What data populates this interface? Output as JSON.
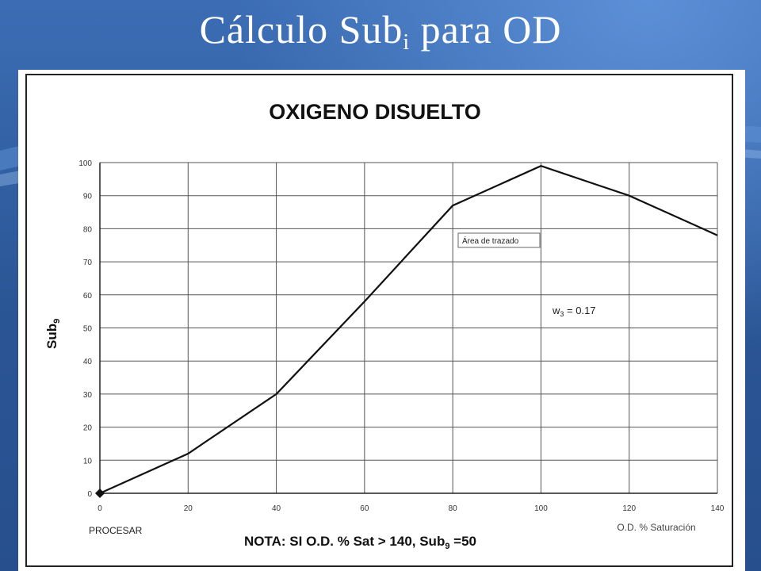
{
  "slide": {
    "title_main": "Cálculo Sub",
    "title_sub": "i",
    "title_end": " para OD"
  },
  "chart_data": {
    "type": "line",
    "title": "OXIGENO DISUELTO",
    "xlabel": "O.D. % Saturación",
    "ylabel_main": "Sub",
    "ylabel_sub": "9",
    "x": [
      0,
      20,
      40,
      60,
      80,
      100,
      120,
      140
    ],
    "series": [
      {
        "values": [
          0,
          12,
          30,
          58,
          87,
          99,
          90,
          78
        ]
      }
    ],
    "xlim": [
      0,
      140
    ],
    "ylim": [
      0,
      100
    ],
    "xticks": [
      0,
      20,
      40,
      60,
      80,
      100,
      120,
      140
    ],
    "yticks": [
      0,
      10,
      20,
      30,
      40,
      50,
      60,
      70,
      80,
      90,
      100
    ],
    "grid": true,
    "tooltip": "Área de trazado",
    "annotation_weight_main": "w",
    "annotation_weight_sub": "3",
    "annotation_weight_end": " = 0.17",
    "button_label": "PROCESAR",
    "note_main": "NOTA: SI O.D. % Sat > 140, Sub",
    "note_sub": "9",
    "note_end": " =50",
    "line_color": "#111111",
    "grid_color": "#555555"
  }
}
